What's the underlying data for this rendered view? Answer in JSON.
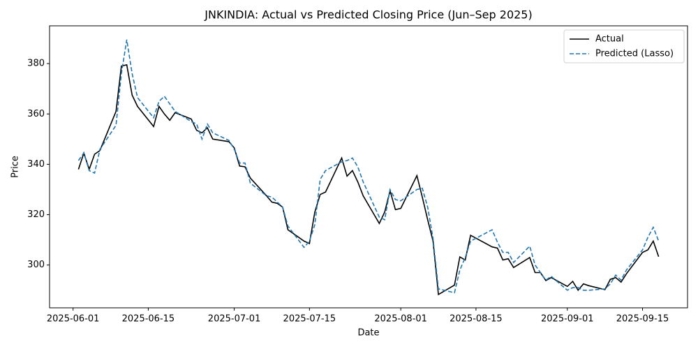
{
  "chart_data": {
    "type": "line",
    "title": "JNKINDIA: Actual vs Predicted Closing Price (Jun–Sep 2025)",
    "x_label": "Date",
    "y_label": "Price",
    "x": [
      "2025-06-02",
      "2025-06-03",
      "2025-06-04",
      "2025-06-05",
      "2025-06-06",
      "2025-06-09",
      "2025-06-10",
      "2025-06-11",
      "2025-06-12",
      "2025-06-13",
      "2025-06-16",
      "2025-06-17",
      "2025-06-18",
      "2025-06-19",
      "2025-06-20",
      "2025-06-23",
      "2025-06-24",
      "2025-06-25",
      "2025-06-26",
      "2025-06-27",
      "2025-06-30",
      "2025-07-01",
      "2025-07-02",
      "2025-07-03",
      "2025-07-04",
      "2025-07-07",
      "2025-07-08",
      "2025-07-09",
      "2025-07-10",
      "2025-07-11",
      "2025-07-14",
      "2025-07-15",
      "2025-07-16",
      "2025-07-17",
      "2025-07-18",
      "2025-07-21",
      "2025-07-22",
      "2025-07-23",
      "2025-07-24",
      "2025-07-25",
      "2025-07-28",
      "2025-07-29",
      "2025-07-30",
      "2025-07-31",
      "2025-08-01",
      "2025-08-04",
      "2025-08-05",
      "2025-08-06",
      "2025-08-07",
      "2025-08-08",
      "2025-08-11",
      "2025-08-12",
      "2025-08-13",
      "2025-08-14",
      "2025-08-18",
      "2025-08-19",
      "2025-08-20",
      "2025-08-21",
      "2025-08-22",
      "2025-08-25",
      "2025-08-26",
      "2025-08-27",
      "2025-08-28",
      "2025-08-29",
      "2025-09-01",
      "2025-09-02",
      "2025-09-03",
      "2025-09-04",
      "2025-09-05",
      "2025-09-08",
      "2025-09-09",
      "2025-09-10",
      "2025-09-11",
      "2025-09-12",
      "2025-09-15",
      "2025-09-16",
      "2025-09-17",
      "2025-09-18"
    ],
    "series": [
      {
        "name": "Actual",
        "color": "#000000",
        "dash": "solid",
        "values": [
          338,
          344.5,
          338,
          344,
          345.5,
          361,
          379,
          379.5,
          367.5,
          363,
          355,
          363,
          360,
          357.5,
          360.5,
          358,
          353.5,
          352.5,
          354.5,
          350,
          349,
          346.5,
          339.3,
          339,
          334.5,
          327.5,
          325,
          324.5,
          323,
          314,
          309.5,
          308.5,
          321,
          328,
          329,
          342.5,
          335.3,
          337.5,
          333,
          327.5,
          316.5,
          321,
          329.5,
          322,
          322.5,
          335.5,
          327,
          318,
          309.5,
          288.3,
          292,
          303.2,
          302,
          311.8,
          307.2,
          306.7,
          302,
          302.5,
          299,
          303,
          297,
          297,
          293.8,
          295,
          291.5,
          293.5,
          290,
          292.5,
          291.8,
          290.2,
          294.3,
          295,
          293.2,
          296.5,
          305,
          306,
          309.5,
          303.3
        ]
      },
      {
        "name": "Predicted (Lasso)",
        "color": "#1f77b4",
        "dash": "dashed",
        "values": [
          341.5,
          344.5,
          337.5,
          336.5,
          346,
          355.5,
          376,
          389.5,
          376,
          366.5,
          358.5,
          365,
          367,
          364,
          361,
          357,
          356,
          350,
          356,
          352.5,
          349.5,
          346,
          340.5,
          340.5,
          332.5,
          327.5,
          327,
          325,
          323,
          315.5,
          307,
          309.5,
          316,
          334,
          337.5,
          341,
          341.5,
          342.5,
          339,
          333,
          319,
          318,
          330,
          326,
          325.5,
          330,
          330.5,
          323,
          310.5,
          290.5,
          289,
          298,
          303,
          309.5,
          314,
          309,
          305,
          305,
          301,
          307.5,
          300,
          297,
          294,
          295.5,
          290,
          291,
          291,
          290,
          290,
          290.5,
          292.5,
          296,
          294,
          298,
          306,
          311,
          315,
          309.5
        ]
      }
    ],
    "xlim": [
      "2025-05-27T15:00",
      "2025-09-23T09:00"
    ],
    "xticks": [
      "2025-06-01",
      "2025-06-15",
      "2025-07-01",
      "2025-07-15",
      "2025-08-01",
      "2025-08-15",
      "2025-09-01",
      "2025-09-15"
    ],
    "ylim": [
      283,
      395
    ],
    "yticks": [
      300,
      320,
      340,
      360,
      380
    ],
    "grid": false,
    "legend": "upper right"
  }
}
